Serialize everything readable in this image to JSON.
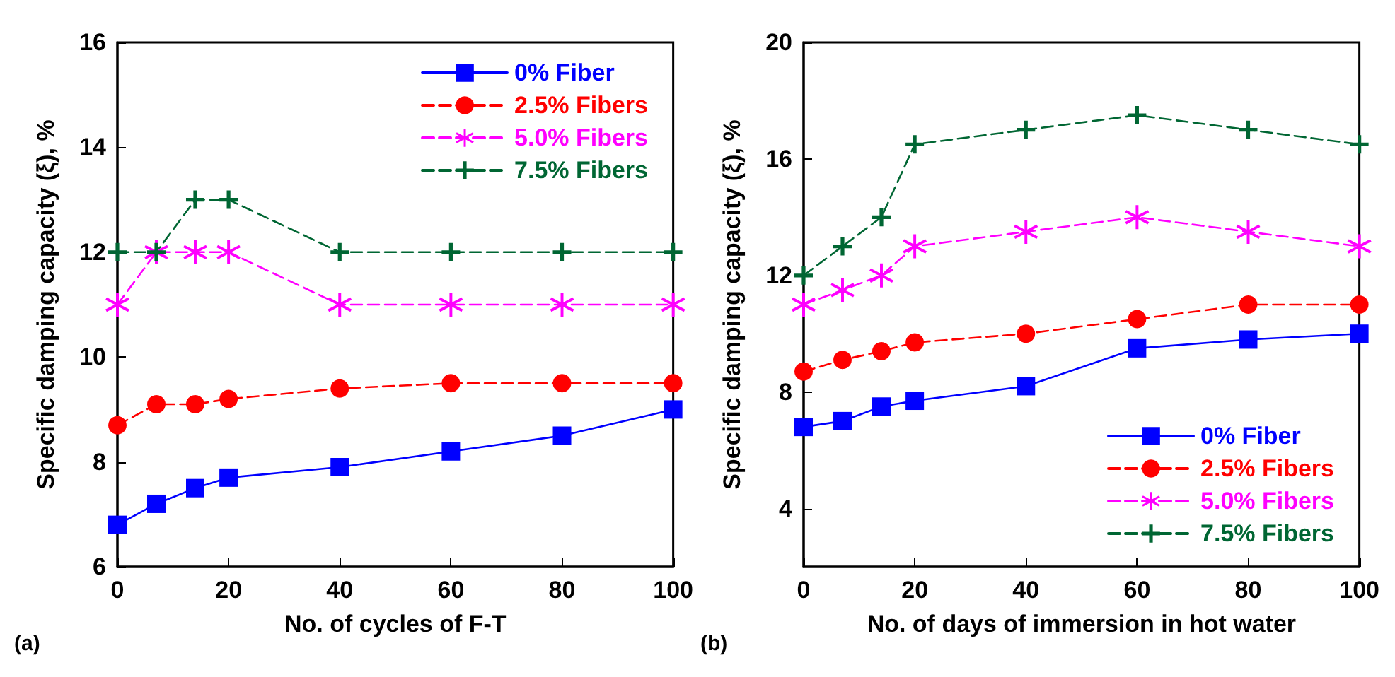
{
  "chart_data": [
    {
      "type": "line",
      "annotations": [
        "(a)"
      ],
      "xlabel": "No. of cycles of F-T",
      "ylabel": "Specific damping capacity (ξ), %",
      "x": [
        0,
        7,
        14,
        20,
        40,
        60,
        80,
        100
      ],
      "xlim": [
        0,
        100
      ],
      "xticks": [
        0,
        20,
        40,
        60,
        80,
        100
      ],
      "ylim": [
        6,
        16
      ],
      "yticks": [
        6,
        8,
        10,
        12,
        14,
        16
      ],
      "grid": false,
      "legend": "top right",
      "series": [
        {
          "name": "0% Fiber",
          "color": "#0000ff",
          "marker": "square",
          "line_style": "solid",
          "values": [
            6.8,
            7.2,
            7.5,
            7.7,
            7.9,
            8.2,
            8.5,
            9.0
          ]
        },
        {
          "name": "2.5% Fibers",
          "color": "#ff0000",
          "marker": "circle",
          "line_style": "dashed",
          "values": [
            8.7,
            9.1,
            9.1,
            9.2,
            9.4,
            9.5,
            9.5,
            9.5
          ]
        },
        {
          "name": "5.0% Fibers",
          "color": "#ff00ff",
          "marker": "star",
          "line_style": "dashed",
          "values": [
            11,
            12,
            12,
            12,
            11,
            11,
            11,
            11
          ]
        },
        {
          "name": "7.5% Fibers",
          "color": "#006633",
          "marker": "cross",
          "line_style": "dashed",
          "values": [
            12,
            12,
            13,
            13,
            12,
            12,
            12,
            12
          ]
        }
      ]
    },
    {
      "type": "line",
      "annotations": [
        "(b)"
      ],
      "xlabel": "No. of days of immersion in hot water",
      "ylabel": "Specific damping capacity (ξ), %",
      "x": [
        0,
        7,
        14,
        20,
        40,
        60,
        80,
        100
      ],
      "xlim": [
        0,
        100
      ],
      "xticks": [
        0,
        20,
        40,
        60,
        80,
        100
      ],
      "ylim": [
        2,
        20
      ],
      "yticks": [
        4,
        8,
        12,
        16,
        20
      ],
      "grid": false,
      "legend": "bottom right",
      "series": [
        {
          "name": "0% Fiber",
          "color": "#0000ff",
          "marker": "square",
          "line_style": "solid",
          "values": [
            6.8,
            7.0,
            7.5,
            7.7,
            8.2,
            9.5,
            9.8,
            10.0
          ]
        },
        {
          "name": "2.5% Fibers",
          "color": "#ff0000",
          "marker": "circle",
          "line_style": "dashed",
          "values": [
            8.7,
            9.1,
            9.4,
            9.7,
            10.0,
            10.5,
            11.0,
            11.0
          ]
        },
        {
          "name": "5.0% Fibers",
          "color": "#ff00ff",
          "marker": "star",
          "line_style": "dashed",
          "values": [
            11,
            11.5,
            12,
            13,
            13.5,
            14,
            13.5,
            13
          ]
        },
        {
          "name": "7.5% Fibers",
          "color": "#006633",
          "marker": "cross",
          "line_style": "dashed",
          "values": [
            12,
            13,
            14,
            16.5,
            17,
            17.5,
            17,
            16.5
          ]
        }
      ]
    }
  ]
}
